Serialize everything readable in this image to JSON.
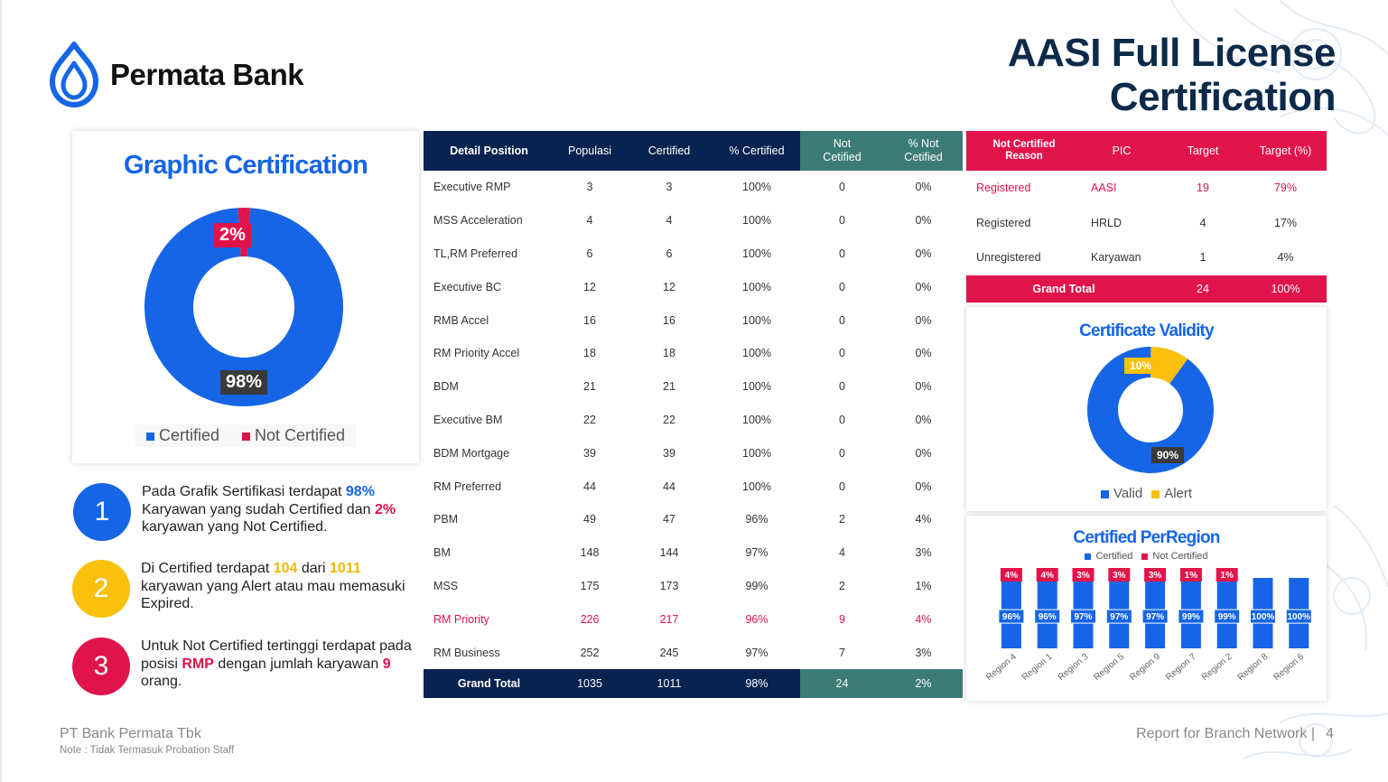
{
  "header": {
    "brand": "Permata Bank",
    "title_line1": "AASI Full License",
    "title_line2": "Certification"
  },
  "graphic_certification": {
    "title": "Graphic Certification",
    "certified_label": "98%",
    "not_certified_label": "2%",
    "legend": [
      "Certified",
      "Not Certified"
    ],
    "colors": {
      "certified": "#1565e6",
      "not_certified": "#e0144b"
    }
  },
  "points": [
    {
      "number": "1",
      "color": "#1565e6"
    },
    {
      "number": "2",
      "color": "#f9c00c"
    },
    {
      "number": "3",
      "color": "#e0144b"
    }
  ],
  "point_text": {
    "p1_a": "Pada Grafik Sertifikasi terdapat ",
    "p1_b": "98%",
    "p1_c": " Karyawan yang sudah Certified dan ",
    "p1_d": "2%",
    "p1_e": " karyawan yang Not Certified.",
    "p2_a": "Di Certified terdapat ",
    "p2_b": "104",
    "p2_c": " dari ",
    "p2_d": "1011",
    "p2_e": " karyawan yang Alert atau mau memasuki Expired.",
    "p3_a": "Untuk Not Certified tertinggi terdapat pada posisi ",
    "p3_b": "RMP",
    "p3_c": " dengan jumlah karyawan ",
    "p3_d": "9",
    "p3_e": " orang."
  },
  "detail_table": {
    "headers": [
      "Detail Position",
      "Populasi",
      "Certified",
      "% Certified",
      "Not Cetified",
      "% Not Cetified"
    ],
    "rows": [
      [
        "Executive RMP",
        "3",
        "3",
        "100%",
        "0",
        "0%"
      ],
      [
        "MSS Acceleration",
        "4",
        "4",
        "100%",
        "0",
        "0%"
      ],
      [
        "TL,RM Preferred",
        "6",
        "6",
        "100%",
        "0",
        "0%"
      ],
      [
        "Executive BC",
        "12",
        "12",
        "100%",
        "0",
        "0%"
      ],
      [
        "RMB Accel",
        "16",
        "16",
        "100%",
        "0",
        "0%"
      ],
      [
        "RM Priority Accel",
        "18",
        "18",
        "100%",
        "0",
        "0%"
      ],
      [
        "BDM",
        "21",
        "21",
        "100%",
        "0",
        "0%"
      ],
      [
        "Executive BM",
        "22",
        "22",
        "100%",
        "0",
        "0%"
      ],
      [
        "BDM Mortgage",
        "39",
        "39",
        "100%",
        "0",
        "0%"
      ],
      [
        "RM Preferred",
        "44",
        "44",
        "100%",
        "0",
        "0%"
      ],
      [
        "PBM",
        "49",
        "47",
        "96%",
        "2",
        "4%"
      ],
      [
        "BM",
        "148",
        "144",
        "97%",
        "4",
        "3%"
      ],
      [
        "MSS",
        "175",
        "173",
        "99%",
        "2",
        "1%"
      ],
      [
        "RM Priority",
        "226",
        "217",
        "96%",
        "9",
        "4%"
      ],
      [
        "RM Business",
        "252",
        "245",
        "97%",
        "7",
        "3%"
      ]
    ],
    "highlight_row": 13,
    "total": [
      "Grand Total",
      "1035",
      "1011",
      "98%",
      "24",
      "2%"
    ]
  },
  "reason_table": {
    "headers": [
      "Not Certified Reason",
      "PIC",
      "Target",
      "Target (%)"
    ],
    "rows": [
      [
        "Registered",
        "AASI",
        "19",
        "79%"
      ],
      [
        "Registered",
        "HRLD",
        "4",
        "17%"
      ],
      [
        "Unregistered",
        "Karyawan",
        "1",
        "4%"
      ]
    ],
    "total": [
      "Grand Total",
      "24",
      "100%"
    ]
  },
  "certificate_validity": {
    "title": "Certificate Validity",
    "valid_label": "90%",
    "alert_label": "10%",
    "legend": [
      "Valid",
      "Alert"
    ],
    "colors": {
      "valid": "#1565e6",
      "alert": "#f9c00c"
    }
  },
  "chart_data": [
    {
      "type": "pie",
      "title": "Graphic Certification",
      "categories": [
        "Certified",
        "Not Certified"
      ],
      "values": [
        98,
        2
      ]
    },
    {
      "type": "pie",
      "title": "Certificate Validity",
      "categories": [
        "Valid",
        "Alert"
      ],
      "values": [
        90,
        10
      ]
    },
    {
      "type": "bar",
      "stacked": true,
      "title": "Certified PerRegion",
      "categories": [
        "Region 4",
        "Region 1",
        "Region 3",
        "Region 5",
        "Region 9",
        "Region 7",
        "Region 2",
        "Region 8",
        "Region 6"
      ],
      "series": [
        {
          "name": "Certified",
          "values": [
            96,
            96,
            97,
            97,
            97,
            99,
            99,
            100,
            100
          ],
          "labels": [
            "96%",
            "96%",
            "97%",
            "97%",
            "97%",
            "99%",
            "99%",
            "100%",
            "100%"
          ]
        },
        {
          "name": "Not Certified",
          "values": [
            4,
            4,
            3,
            3,
            3,
            1,
            1,
            0,
            0
          ],
          "labels": [
            "4%",
            "4%",
            "3%",
            "3%",
            "3%",
            "1%",
            "1%",
            "",
            ""
          ]
        }
      ],
      "colors": {
        "Certified": "#1565e6",
        "Not Certified": "#e0144b"
      }
    }
  ],
  "footer": {
    "company": "PT Bank Permata Tbk",
    "note": "Note : Tidak Termasuk Probation Staff",
    "report": "Report for Branch Network |",
    "page": "4"
  }
}
